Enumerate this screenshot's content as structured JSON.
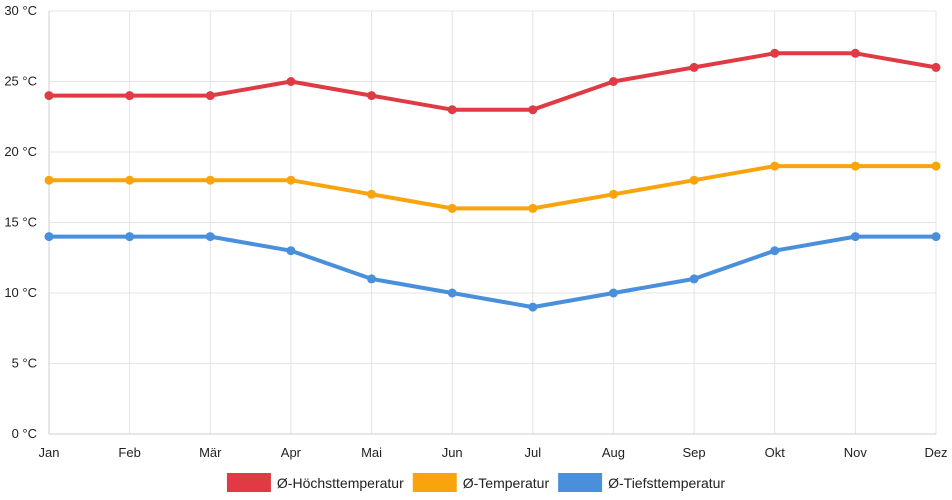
{
  "chart_data": {
    "type": "line",
    "title": "",
    "xlabel": "",
    "ylabel": "",
    "categories": [
      "Jan",
      "Feb",
      "Mär",
      "Apr",
      "Mai",
      "Jun",
      "Jul",
      "Aug",
      "Sep",
      "Okt",
      "Nov",
      "Dez"
    ],
    "ylim": [
      0,
      30
    ],
    "yticks": [
      0,
      5,
      10,
      15,
      20,
      25,
      30
    ],
    "ytick_labels": [
      "0 °C",
      "5 °C",
      "10 °C",
      "15 °C",
      "20 °C",
      "25 °C",
      "30 °C"
    ],
    "grid": true,
    "legend_position": "bottom",
    "series": [
      {
        "name": "Ø-Höchsttemperatur",
        "color": "#e03a44",
        "values": [
          24,
          24,
          24,
          25,
          24,
          23,
          23,
          25,
          26,
          27,
          27,
          26
        ]
      },
      {
        "name": "Ø-Temperatur",
        "color": "#f9a40d",
        "values": [
          18,
          18,
          18,
          18,
          17,
          16,
          16,
          17,
          18,
          19,
          19,
          19
        ]
      },
      {
        "name": "Ø-Tiefsttemperatur",
        "color": "#4a8fdc",
        "values": [
          14,
          14,
          14,
          13,
          11,
          10,
          9,
          10,
          11,
          13,
          14,
          14
        ]
      }
    ]
  }
}
